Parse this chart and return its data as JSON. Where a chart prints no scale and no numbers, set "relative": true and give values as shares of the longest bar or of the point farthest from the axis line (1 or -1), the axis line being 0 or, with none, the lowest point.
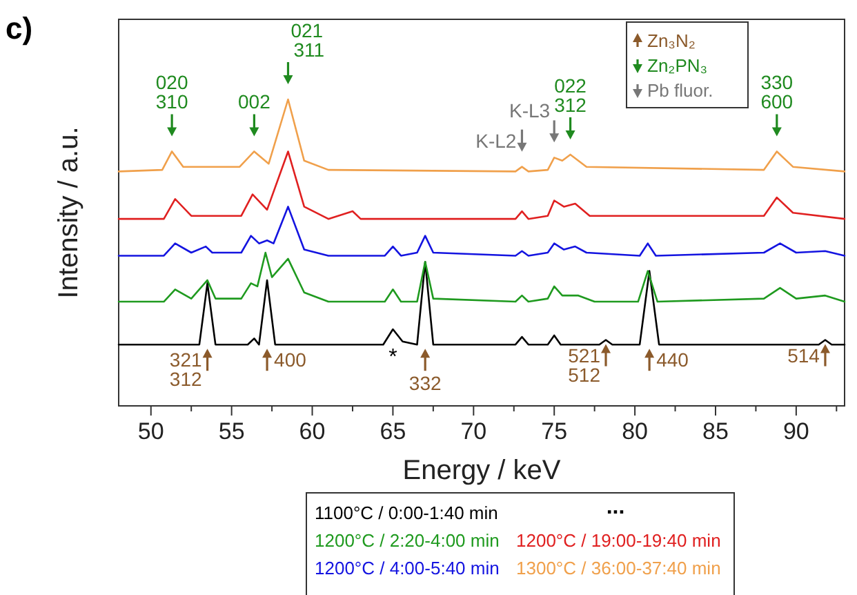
{
  "chart_data": {
    "type": "line",
    "relative": true,
    "xlabel": "Energy / keV",
    "ylabel": "Intensity / a.u.",
    "xlim": [
      48,
      93
    ],
    "xticks": [
      50,
      {
        "value": 52.5,
        "label": null
      },
      55,
      {
        "value": 57.5,
        "label": null
      },
      60,
      {
        "value": 62.5,
        "label": null
      },
      65,
      {
        "value": 67.5,
        "label": null
      },
      70,
      {
        "value": 72.5,
        "label": null
      },
      75,
      {
        "value": 77.5,
        "label": null
      },
      80,
      {
        "value": 82.5,
        "label": null
      },
      85,
      {
        "value": 87.5,
        "label": null
      },
      90,
      {
        "value": 92.5,
        "label": null
      }
    ],
    "legend": "bottom",
    "series": [
      {
        "name": "1100°C / 0:00-1:40 min",
        "color": "#000000",
        "x": [
          48,
          50,
          53,
          53.5,
          54,
          56,
          56.4,
          56.7,
          57.2,
          57.7,
          60,
          64.4,
          65,
          65.6,
          66.5,
          67,
          67.5,
          72.6,
          73,
          73.4,
          74.6,
          75,
          75.4,
          77.8,
          78.2,
          78.6,
          80.3,
          80.9,
          81.5,
          85,
          91.4,
          91.8,
          92.2,
          93
        ],
        "values": [
          0.2,
          0.2,
          0.2,
          0.4,
          0.2,
          0.2,
          0.22,
          0.2,
          0.41,
          0.2,
          0.2,
          0.2,
          0.25,
          0.21,
          0.2,
          0.47,
          0.2,
          0.2,
          0.225,
          0.2,
          0.2,
          0.23,
          0.2,
          0.2,
          0.215,
          0.2,
          0.2,
          0.44,
          0.2,
          0.2,
          0.2,
          0.215,
          0.2,
          0.2
        ]
      },
      {
        "name": "1200°C / 2:20-4:00 min",
        "color": "#1f9a1f",
        "x": [
          48,
          50.8,
          51.5,
          52.5,
          53.5,
          54,
          55.6,
          56.2,
          56.6,
          57.1,
          57.5,
          58.5,
          59.5,
          61,
          64.5,
          65,
          65.5,
          66.5,
          67,
          67.5,
          72.6,
          73,
          73.4,
          74.6,
          75,
          75.5,
          76.5,
          77.5,
          80.2,
          80.8,
          81.4,
          88,
          89,
          90,
          91.8,
          93
        ],
        "values": [
          0.34,
          0.34,
          0.38,
          0.35,
          0.41,
          0.35,
          0.35,
          0.4,
          0.39,
          0.5,
          0.42,
          0.48,
          0.37,
          0.34,
          0.34,
          0.38,
          0.34,
          0.34,
          0.47,
          0.35,
          0.34,
          0.36,
          0.34,
          0.35,
          0.39,
          0.36,
          0.36,
          0.34,
          0.34,
          0.44,
          0.34,
          0.35,
          0.385,
          0.35,
          0.36,
          0.34
        ]
      },
      {
        "name": "1200°C / 4:00-5:40 min",
        "color": "#1414e0",
        "x": [
          48,
          50.8,
          51.5,
          52.5,
          53.4,
          53.8,
          55.6,
          56.2,
          56.7,
          57.2,
          57.6,
          58.5,
          59.5,
          61,
          64.5,
          65,
          65.5,
          66.5,
          67,
          67.5,
          72.6,
          73,
          73.4,
          74.6,
          75,
          75.6,
          76.3,
          77,
          80.3,
          80.8,
          81.3,
          88,
          89,
          90,
          91.8,
          93
        ],
        "values": [
          0.49,
          0.49,
          0.53,
          0.5,
          0.52,
          0.5,
          0.5,
          0.555,
          0.53,
          0.54,
          0.53,
          0.65,
          0.51,
          0.49,
          0.49,
          0.52,
          0.49,
          0.5,
          0.555,
          0.5,
          0.49,
          0.505,
          0.49,
          0.5,
          0.53,
          0.51,
          0.52,
          0.5,
          0.49,
          0.53,
          0.49,
          0.5,
          0.53,
          0.5,
          0.505,
          0.49
        ]
      },
      {
        "name": "1200°C / 19:00-19:40 min",
        "color": "#e02020",
        "x": [
          48,
          50.8,
          51.5,
          52.5,
          55.6,
          56.3,
          57.2,
          58.5,
          59.5,
          61,
          62.5,
          63,
          72.6,
          73,
          73.4,
          74.6,
          75,
          75.6,
          76.3,
          77.2,
          88,
          88.8,
          89.8,
          93
        ],
        "values": [
          0.61,
          0.61,
          0.675,
          0.62,
          0.62,
          0.69,
          0.64,
          0.83,
          0.65,
          0.61,
          0.635,
          0.61,
          0.61,
          0.635,
          0.61,
          0.62,
          0.67,
          0.65,
          0.66,
          0.62,
          0.62,
          0.68,
          0.63,
          0.61
        ]
      },
      {
        "name": "1300°C / 36:00-37:40 min",
        "color": "#f0a04b",
        "x": [
          48,
          50.7,
          51.3,
          52,
          55.5,
          56.4,
          57.3,
          58.5,
          59.5,
          61,
          72.6,
          73,
          73.4,
          74.6,
          75,
          75.5,
          76,
          77,
          88,
          88.8,
          89.8,
          93
        ],
        "values": [
          0.765,
          0.77,
          0.83,
          0.78,
          0.78,
          0.83,
          0.79,
          1.0,
          0.8,
          0.77,
          0.765,
          0.78,
          0.765,
          0.77,
          0.81,
          0.8,
          0.82,
          0.78,
          0.77,
          0.83,
          0.78,
          0.765
        ]
      }
    ],
    "annotations": [
      "c)",
      "...",
      {
        "text": "020\n310",
        "x": 51.3,
        "y": 0.83
      },
      {
        "text": "002",
        "x": 56.4,
        "y": 0.83
      },
      {
        "text": "021\n311",
        "x": 58.5,
        "y": 1.0
      },
      {
        "text": "K-L2",
        "x": 73,
        "y": 0.78
      },
      {
        "text": "K-L3",
        "x": 75,
        "y": 0.81
      },
      {
        "text": "022\n312",
        "x": 76,
        "y": 0.82
      },
      {
        "text": "330\n600",
        "x": 88.8,
        "y": 0.83
      },
      "321\n312",
      "400",
      "332",
      {
        "text": "521\n512",
        "x": 78.2,
        "y": 0.215
      },
      "440",
      {
        "text": "514",
        "x": 91.8,
        "y": 0.215
      },
      "*",
      "Zn₃N₂",
      "Zn₂PN₃",
      "Pb fluor."
    ]
  }
}
